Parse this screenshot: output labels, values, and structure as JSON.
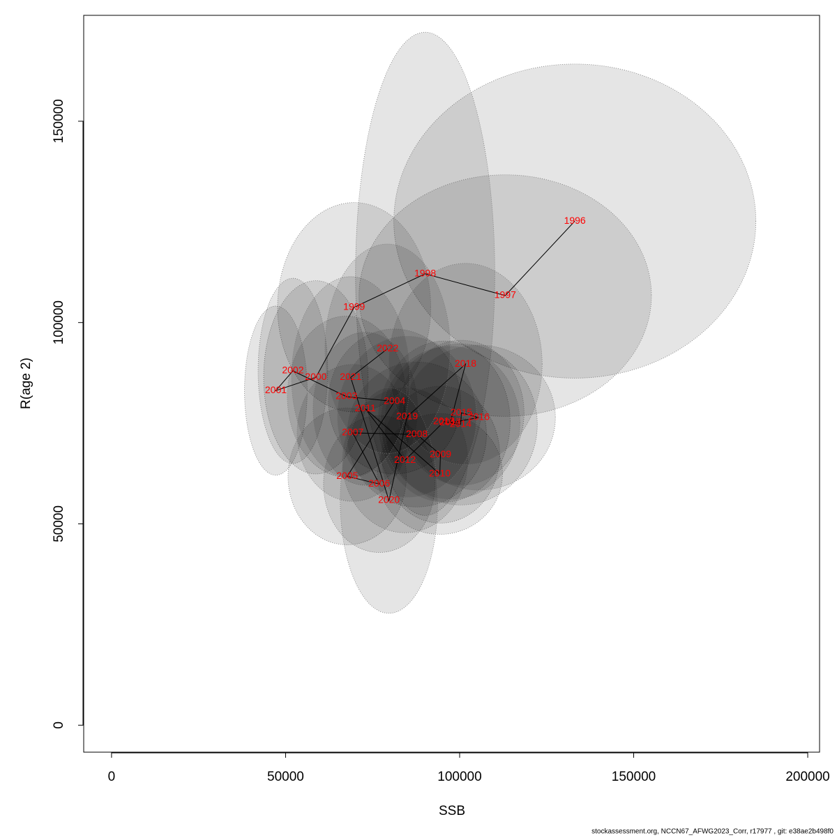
{
  "chart_data": {
    "type": "scatter",
    "x_label": "SSB",
    "y_label": "R(age 2)",
    "footer": "stockassessment.org, NCCN67_AFWG2023_Corr, r17977 , git: e38ae2b498f0",
    "labels": [
      "1996",
      "1997",
      "1998",
      "1999",
      "2000",
      "2001",
      "2002",
      "2003",
      "2004",
      "2005",
      "2006",
      "2007",
      "2008",
      "2009",
      "2010",
      "2011",
      "2012",
      "2013",
      "2014",
      "2015",
      "2016",
      "2017",
      "2018",
      "2019",
      "2020",
      "2021",
      "2022"
    ],
    "x": [
      133100,
      113100,
      90100,
      69700,
      58700,
      47200,
      52100,
      67500,
      81300,
      67700,
      76900,
      69300,
      87700,
      94500,
      94300,
      72900,
      84300,
      95500,
      100300,
      100500,
      105500,
      97300,
      101700,
      84900,
      79700,
      68700,
      79300
    ],
    "y": [
      125200,
      106700,
      112100,
      103800,
      86400,
      83100,
      88000,
      81600,
      80400,
      61800,
      59900,
      72600,
      72200,
      67200,
      62400,
      78600,
      65800,
      75400,
      74700,
      77600,
      76400,
      75100,
      89700,
      76600,
      55800,
      86400,
      93500
    ],
    "x_halfwidth": [
      52000,
      42000,
      20000,
      22000,
      15000,
      9000,
      10000,
      17000,
      19000,
      17000,
      16000,
      16000,
      20000,
      17000,
      18000,
      15000,
      18000,
      19000,
      22000,
      18000,
      22000,
      20000,
      22000,
      20000,
      14000,
      17000,
      18000
    ],
    "y_halfwidth": [
      39000,
      30000,
      60000,
      26000,
      24000,
      21000,
      23000,
      20000,
      18000,
      17000,
      17000,
      17000,
      18000,
      17000,
      15000,
      19000,
      18000,
      20000,
      20000,
      18000,
      18000,
      19000,
      25000,
      20000,
      28000,
      25000,
      26000
    ],
    "line_color": "#000000",
    "label_color": "#ff0000",
    "xlim": [
      -8000,
      203400
    ],
    "ylim": [
      -6700,
      176300
    ],
    "xticks": [
      0,
      50000,
      100000,
      150000,
      200000
    ],
    "yticks": [
      0,
      50000,
      100000,
      150000
    ]
  }
}
